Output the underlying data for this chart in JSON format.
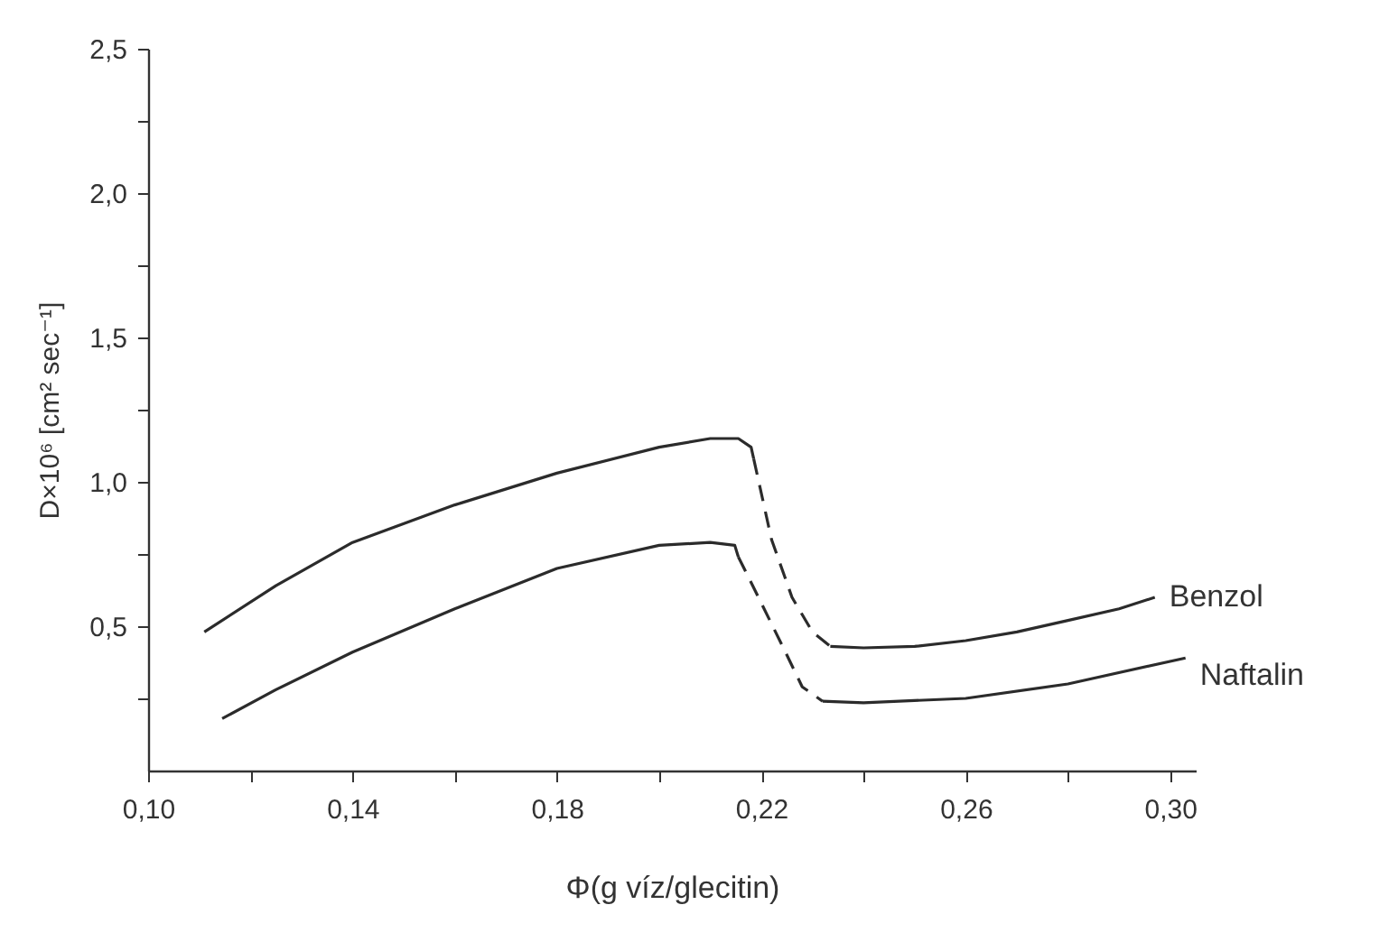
{
  "chart_data": {
    "type": "line",
    "xlabel": "Φ(g víz/glecitin)",
    "ylabel": "D×10⁶ [cm² sec⁻¹]",
    "legend": false,
    "grid": false,
    "marker": "none",
    "xlim": [
      0.1,
      0.305
    ],
    "ylim": [
      0,
      2.5
    ],
    "xticks": [
      {
        "value": 0.1,
        "label": "0,10"
      },
      {
        "value": 0.12,
        "label": null
      },
      {
        "value": 0.14,
        "label": "0,14"
      },
      {
        "value": 0.16,
        "label": null
      },
      {
        "value": 0.18,
        "label": "0,18"
      },
      {
        "value": 0.2,
        "label": null
      },
      {
        "value": 0.22,
        "label": "0,22"
      },
      {
        "value": 0.24,
        "label": null
      },
      {
        "value": 0.26,
        "label": "0,26"
      },
      {
        "value": 0.28,
        "label": null
      },
      {
        "value": 0.3,
        "label": "0,30"
      }
    ],
    "yticks": [
      {
        "value": 0.25,
        "label": null
      },
      {
        "value": 0.5,
        "label": "0,5"
      },
      {
        "value": 0.75,
        "label": null
      },
      {
        "value": 1,
        "label": "1,0"
      },
      {
        "value": 1.25,
        "label": null
      },
      {
        "value": 1.5,
        "label": "1,5"
      },
      {
        "value": 1.75,
        "label": null
      },
      {
        "value": 2,
        "label": "2,0"
      },
      {
        "value": 2.25,
        "label": null
      },
      {
        "value": 2.5,
        "label": "2,5"
      }
    ],
    "series": [
      {
        "color": "#2b2b2b",
        "line_style": "solid",
        "x": [
          0.111,
          0.125,
          0.14,
          0.16,
          0.18,
          0.2,
          0.21,
          0.2155,
          0.218,
          0.2185
        ],
        "values": [
          0.48,
          0.64,
          0.79,
          0.92,
          1.03,
          1.12,
          1.15,
          1.15,
          1.12,
          1.08
        ]
      },
      {
        "color": "#2b2b2b",
        "line_style": "dashed",
        "x": [
          0.2185,
          0.222,
          0.226,
          0.23,
          0.2335
        ],
        "values": [
          1.08,
          0.8,
          0.6,
          0.48,
          0.43
        ]
      },
      {
        "name": "Benzol",
        "color": "#2b2b2b",
        "line_style": "solid",
        "x": [
          0.2335,
          0.24,
          0.25,
          0.26,
          0.27,
          0.28,
          0.29,
          0.297
        ],
        "values": [
          0.43,
          0.425,
          0.43,
          0.45,
          0.48,
          0.52,
          0.56,
          0.6
        ]
      },
      {
        "color": "#2b2b2b",
        "line_style": "solid",
        "x": [
          0.1145,
          0.125,
          0.14,
          0.16,
          0.18,
          0.2,
          0.21,
          0.2148,
          0.2155
        ],
        "values": [
          0.18,
          0.28,
          0.41,
          0.56,
          0.7,
          0.78,
          0.79,
          0.78,
          0.74
        ]
      },
      {
        "color": "#2b2b2b",
        "line_style": "dashed",
        "x": [
          0.2155,
          0.22,
          0.225,
          0.228,
          0.232
        ],
        "values": [
          0.74,
          0.58,
          0.4,
          0.29,
          0.24
        ]
      },
      {
        "name": "Naftalin",
        "color": "#2b2b2b",
        "line_style": "solid",
        "x": [
          0.232,
          0.24,
          0.26,
          0.28,
          0.303
        ],
        "values": [
          0.24,
          0.235,
          0.25,
          0.3,
          0.39
        ]
      }
    ]
  }
}
